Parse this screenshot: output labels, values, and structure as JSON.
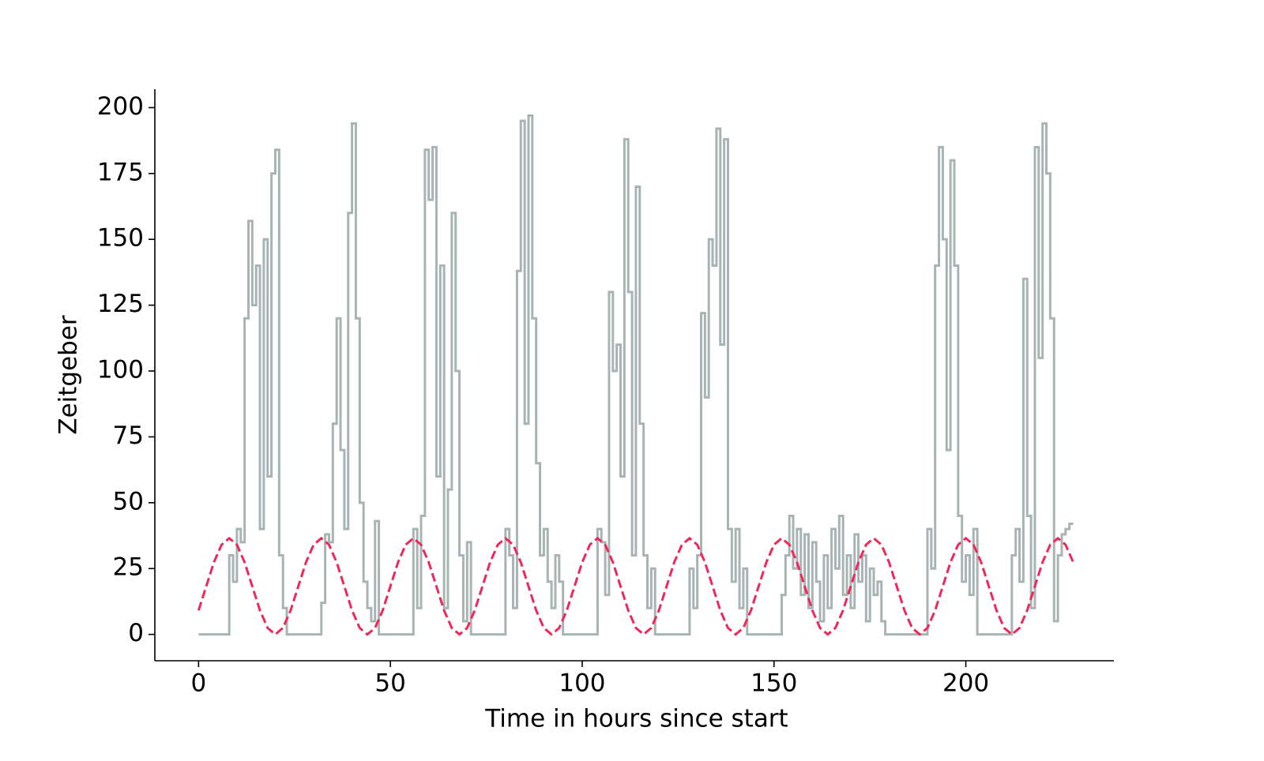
{
  "chart_data": {
    "type": "line",
    "xlabel": "Time in hours since start",
    "ylabel": "Zeitgeber",
    "xlim": [
      -11.4,
      238.6
    ],
    "ylim": [
      -10,
      207
    ],
    "xticks": [
      0,
      50,
      100,
      150,
      200
    ],
    "yticks": [
      0,
      25,
      50,
      75,
      100,
      125,
      150,
      175,
      200
    ],
    "series": [
      {
        "color": "#a8b4b4",
        "drawstyle": "steps-post",
        "dash": false,
        "x": [
          0,
          1,
          2,
          3,
          4,
          5,
          6,
          7,
          8,
          9,
          10,
          11,
          12,
          13,
          14,
          15,
          16,
          17,
          18,
          19,
          20,
          21,
          22,
          23,
          24,
          25,
          26,
          27,
          28,
          29,
          30,
          31,
          32,
          33,
          34,
          35,
          36,
          37,
          38,
          39,
          40,
          41,
          42,
          43,
          44,
          45,
          46,
          47,
          48,
          49,
          50,
          51,
          52,
          53,
          54,
          55,
          56,
          57,
          58,
          59,
          60,
          61,
          62,
          63,
          64,
          65,
          66,
          67,
          68,
          69,
          70,
          71,
          72,
          73,
          74,
          75,
          76,
          77,
          78,
          79,
          80,
          81,
          82,
          83,
          84,
          85,
          86,
          87,
          88,
          89,
          90,
          91,
          92,
          93,
          94,
          95,
          96,
          97,
          98,
          99,
          100,
          101,
          102,
          103,
          104,
          105,
          106,
          107,
          108,
          109,
          110,
          111,
          112,
          113,
          114,
          115,
          116,
          117,
          118,
          119,
          120,
          121,
          122,
          123,
          124,
          125,
          126,
          127,
          128,
          129,
          130,
          131,
          132,
          133,
          134,
          135,
          136,
          137,
          138,
          139,
          140,
          141,
          142,
          143,
          144,
          145,
          146,
          147,
          148,
          149,
          150,
          151,
          152,
          153,
          154,
          155,
          156,
          157,
          158,
          159,
          160,
          161,
          162,
          163,
          164,
          165,
          166,
          167,
          168,
          169,
          170,
          171,
          172,
          173,
          174,
          175,
          176,
          177,
          178,
          179,
          180,
          181,
          182,
          183,
          184,
          185,
          186,
          187,
          188,
          189,
          190,
          191,
          192,
          193,
          194,
          195,
          196,
          197,
          198,
          199,
          200,
          201,
          202,
          203,
          204,
          205,
          206,
          207,
          208,
          209,
          210,
          211,
          212,
          213,
          214,
          215,
          216,
          217,
          218,
          219,
          220,
          221,
          222,
          223,
          224,
          225,
          226,
          227,
          228
        ],
        "values": [
          0,
          0,
          0,
          0,
          0,
          0,
          0,
          0,
          30,
          20,
          40,
          35,
          120,
          157,
          125,
          140,
          40,
          150,
          60,
          175,
          184,
          30,
          10,
          0,
          0,
          0,
          0,
          0,
          0,
          0,
          0,
          0,
          12,
          38,
          35,
          80,
          120,
          70,
          40,
          160,
          194,
          120,
          50,
          20,
          10,
          5,
          43,
          0,
          0,
          0,
          0,
          0,
          0,
          0,
          0,
          0,
          40,
          10,
          45,
          184,
          165,
          185,
          60,
          140,
          10,
          55,
          160,
          100,
          30,
          5,
          35,
          0,
          0,
          0,
          0,
          0,
          0,
          0,
          0,
          0,
          40,
          30,
          10,
          138,
          195,
          80,
          197,
          120,
          65,
          30,
          40,
          20,
          10,
          30,
          20,
          0,
          0,
          0,
          0,
          0,
          0,
          0,
          0,
          0,
          40,
          35,
          15,
          130,
          100,
          110,
          60,
          188,
          130,
          30,
          170,
          80,
          30,
          10,
          25,
          0,
          0,
          0,
          0,
          0,
          0,
          0,
          0,
          0,
          25,
          10,
          30,
          122,
          90,
          150,
          140,
          192,
          110,
          188,
          40,
          20,
          40,
          10,
          25,
          0,
          0,
          0,
          0,
          0,
          0,
          0,
          0,
          0,
          15,
          30,
          45,
          25,
          40,
          15,
          38,
          10,
          35,
          20,
          5,
          30,
          10,
          40,
          25,
          45,
          15,
          30,
          10,
          38,
          20,
          30,
          5,
          25,
          15,
          20,
          5,
          0,
          0,
          0,
          0,
          0,
          0,
          0,
          0,
          0,
          0,
          0,
          40,
          25,
          140,
          185,
          150,
          70,
          180,
          140,
          45,
          20,
          30,
          15,
          40,
          0,
          0,
          0,
          0,
          0,
          0,
          0,
          0,
          0,
          30,
          40,
          20,
          135,
          45,
          10,
          185,
          105,
          194,
          175,
          120,
          5,
          30,
          38,
          40,
          42,
          42
        ]
      },
      {
        "color": "#f0285a",
        "drawstyle": "default",
        "dash": true,
        "x": [
          0,
          2,
          4,
          6,
          8,
          10,
          12,
          14,
          16,
          18,
          20,
          22,
          24,
          26,
          28,
          30,
          32,
          34,
          36,
          38,
          40,
          42,
          44,
          46,
          48,
          50,
          52,
          54,
          56,
          58,
          60,
          62,
          64,
          66,
          68,
          70,
          72,
          74,
          76,
          78,
          80,
          82,
          84,
          86,
          88,
          90,
          92,
          94,
          96,
          98,
          100,
          102,
          104,
          106,
          108,
          110,
          112,
          114,
          116,
          118,
          120,
          122,
          124,
          126,
          128,
          130,
          132,
          134,
          136,
          138,
          140,
          142,
          144,
          146,
          148,
          150,
          152,
          154,
          156,
          158,
          160,
          162,
          164,
          166,
          168,
          170,
          172,
          174,
          176,
          178,
          180,
          182,
          184,
          186,
          188,
          190,
          192,
          194,
          196,
          198,
          200,
          202,
          204,
          206,
          208,
          210,
          212,
          214,
          216,
          218,
          220,
          222,
          224,
          226,
          228
        ],
        "values": [
          9.13,
          18.25,
          27.38,
          34.06,
          36.5,
          34.06,
          27.38,
          18.25,
          9.13,
          2.45,
          0,
          2.45,
          9.13,
          18.25,
          27.38,
          34.06,
          36.5,
          34.06,
          27.38,
          18.25,
          9.13,
          2.45,
          0,
          2.45,
          9.13,
          18.25,
          27.38,
          34.06,
          36.5,
          34.06,
          27.38,
          18.25,
          9.13,
          2.45,
          0,
          2.45,
          9.13,
          18.25,
          27.38,
          34.06,
          36.5,
          34.06,
          27.38,
          18.25,
          9.13,
          2.45,
          0,
          2.45,
          9.13,
          18.25,
          27.38,
          34.06,
          36.5,
          34.06,
          27.38,
          18.25,
          9.13,
          2.45,
          0,
          2.45,
          9.13,
          18.25,
          27.38,
          34.06,
          36.5,
          34.06,
          27.38,
          18.25,
          9.13,
          2.45,
          0,
          2.45,
          9.13,
          18.25,
          27.38,
          34.06,
          36.5,
          34.06,
          27.38,
          18.25,
          9.13,
          2.45,
          0,
          2.45,
          9.13,
          18.25,
          27.38,
          34.06,
          36.5,
          34.06,
          27.38,
          18.25,
          9.13,
          2.45,
          0,
          2.45,
          9.13,
          18.25,
          27.38,
          34.06,
          36.5,
          34.06,
          27.38,
          18.25,
          9.13,
          2.45,
          0,
          2.45,
          9.13,
          18.25,
          27.38,
          34.06,
          36.5,
          34.06,
          27.38
        ]
      }
    ]
  }
}
